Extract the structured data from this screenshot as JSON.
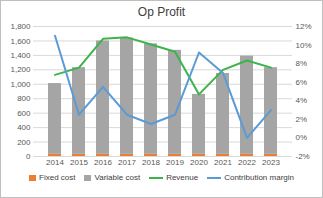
{
  "chart_data": {
    "type": "bar",
    "title": "Op Profit",
    "stacked": true,
    "grid": true,
    "legend": "bottom",
    "categories": [
      "2014",
      "2015",
      "2016",
      "2017",
      "2018",
      "2019",
      "2020",
      "2021",
      "2022",
      "2023"
    ],
    "series": [
      {
        "name": "Fixed cost",
        "type": "bar",
        "color": "#ed7d31",
        "values": [
          30,
          30,
          30,
          30,
          30,
          30,
          30,
          30,
          30,
          30
        ]
      },
      {
        "name": "Variable cost",
        "type": "bar",
        "color": "#a5a5a5",
        "values": [
          980,
          1200,
          1570,
          1610,
          1530,
          1440,
          830,
          1120,
          1360,
          1200
        ]
      },
      {
        "name": "Revenue",
        "type": "line",
        "color": "#3cb44b",
        "values": [
          1130,
          1230,
          1630,
          1650,
          1550,
          1450,
          860,
          1200,
          1330,
          1230
        ]
      },
      {
        "name": "Contribution margin",
        "type": "line",
        "axis": "y2",
        "color": "#5b9bd5",
        "values": [
          11,
          2.5,
          5.5,
          2.5,
          1.5,
          2.5,
          9.2,
          7,
          0,
          3
        ]
      }
    ],
    "ylim": [
      0,
      1800
    ],
    "yticks": [
      0,
      200,
      400,
      600,
      800,
      {
        "value": 1000,
        "label": "1,000"
      },
      {
        "value": 1200,
        "label": "1,200"
      },
      {
        "value": 1400,
        "label": "1,400"
      },
      {
        "value": 1600,
        "label": "1,600"
      },
      {
        "value": 1800,
        "label": "1,800"
      }
    ],
    "y2lim": [
      -2,
      12
    ],
    "y2ticks": [
      {
        "value": -2,
        "label": "-2%"
      },
      {
        "value": 0,
        "label": "0%"
      },
      {
        "value": 2,
        "label": "2%"
      },
      {
        "value": 4,
        "label": "4%"
      },
      {
        "value": 6,
        "label": "6%"
      },
      {
        "value": 8,
        "label": "8%"
      },
      {
        "value": 10,
        "label": "10%"
      },
      {
        "value": 12,
        "label": "12%"
      }
    ]
  }
}
